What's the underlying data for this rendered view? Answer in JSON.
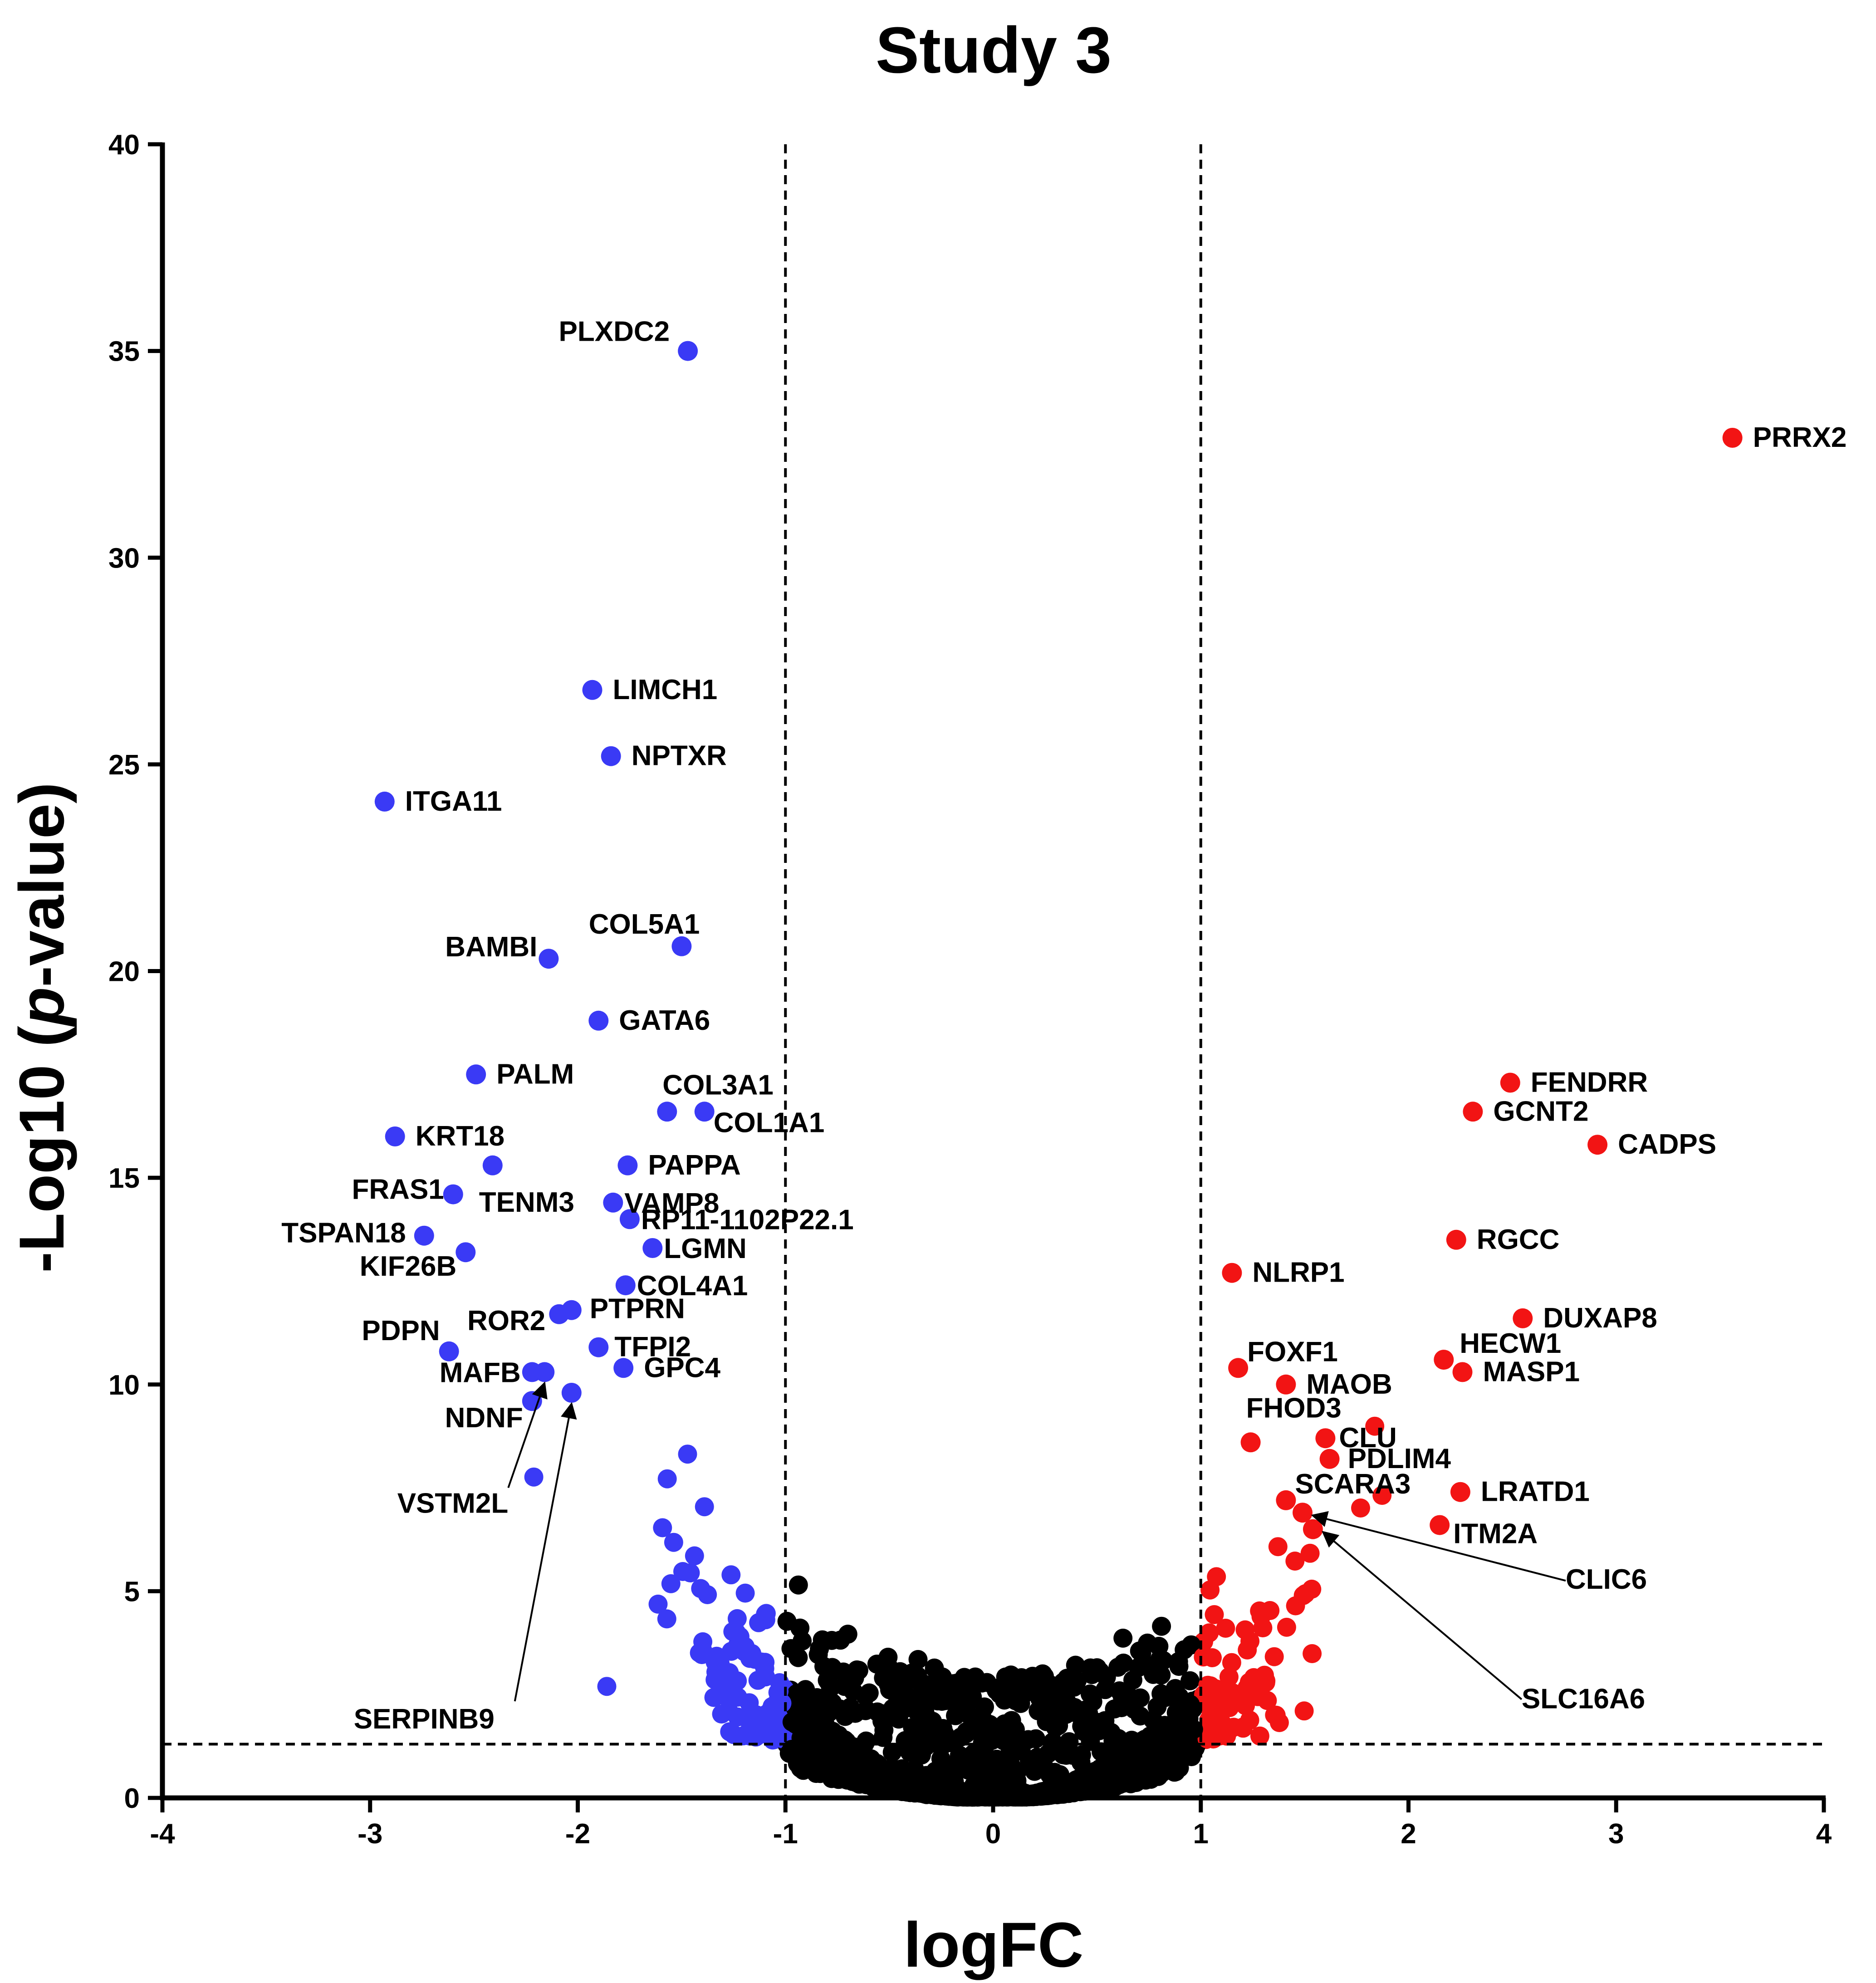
{
  "chart_data": {
    "type": "scatter",
    "title": "Study 3",
    "xlabel": "logFC",
    "ylabel_prefix": "-Log10 (",
    "ylabel_italic": "p",
    "ylabel_suffix": "-value)",
    "xlim": [
      -4,
      4
    ],
    "ylim": [
      0,
      40
    ],
    "xticks": [
      -4,
      -3,
      -2,
      -1,
      0,
      1,
      2,
      3,
      4
    ],
    "yticks": [
      0,
      5,
      10,
      15,
      20,
      25,
      30,
      35,
      40
    ],
    "thresholds": {
      "logfc": [
        -1,
        1
      ],
      "neglog10p": 1.3
    },
    "colors": {
      "down": "#3a3af5",
      "up": "#f21414",
      "ns": "#000000"
    },
    "labeled_points": [
      {
        "gene": "PLXDC2",
        "x": -1.47,
        "y": 35.0,
        "group": "down"
      },
      {
        "gene": "LIMCH1",
        "x": -1.93,
        "y": 26.8,
        "group": "down"
      },
      {
        "gene": "NPTXR",
        "x": -1.84,
        "y": 25.2,
        "group": "down"
      },
      {
        "gene": "ITGA11",
        "x": -2.93,
        "y": 24.1,
        "group": "down"
      },
      {
        "gene": "COL5A1",
        "x": -1.5,
        "y": 20.6,
        "group": "down"
      },
      {
        "gene": "BAMBI",
        "x": -2.14,
        "y": 20.3,
        "group": "down"
      },
      {
        "gene": "GATA6",
        "x": -1.9,
        "y": 18.8,
        "group": "down"
      },
      {
        "gene": "PALM",
        "x": -2.49,
        "y": 17.5,
        "group": "down"
      },
      {
        "gene": "COL3A1",
        "x": -1.57,
        "y": 16.6,
        "group": "down"
      },
      {
        "gene": "COL1A1",
        "x": -1.39,
        "y": 16.6,
        "group": "down"
      },
      {
        "gene": "KRT18",
        "x": -2.88,
        "y": 16.0,
        "group": "down"
      },
      {
        "gene": "PAPPA",
        "x": -1.76,
        "y": 15.3,
        "group": "down"
      },
      {
        "gene": "FRAS1",
        "x": -2.6,
        "y": 14.6,
        "group": "down"
      },
      {
        "gene": "TENM3",
        "x": -2.41,
        "y": 15.3,
        "group": "down"
      },
      {
        "gene": "VAMP8",
        "x": -1.83,
        "y": 14.4,
        "group": "down"
      },
      {
        "gene": "RP11-1102P22.1",
        "x": -1.75,
        "y": 14.0,
        "group": "down"
      },
      {
        "gene": "TSPAN18",
        "x": -2.74,
        "y": 13.6,
        "group": "down"
      },
      {
        "gene": "LGMN",
        "x": -1.64,
        "y": 13.3,
        "group": "down"
      },
      {
        "gene": "KIF26B",
        "x": -2.54,
        "y": 13.2,
        "group": "down"
      },
      {
        "gene": "COL4A1",
        "x": -1.77,
        "y": 12.4,
        "group": "down"
      },
      {
        "gene": "PTPRN",
        "x": -2.03,
        "y": 11.8,
        "group": "down"
      },
      {
        "gene": "ROR2",
        "x": -2.09,
        "y": 11.7,
        "group": "down"
      },
      {
        "gene": "PDPN",
        "x": -2.62,
        "y": 10.8,
        "group": "down"
      },
      {
        "gene": "TFPI2",
        "x": -1.9,
        "y": 10.9,
        "group": "down"
      },
      {
        "gene": "GPC4",
        "x": -1.78,
        "y": 10.4,
        "group": "down"
      },
      {
        "gene": "MAFB",
        "x": -2.22,
        "y": 10.3,
        "group": "down"
      },
      {
        "gene": "NDNF",
        "x": -2.22,
        "y": 9.6,
        "group": "down"
      },
      {
        "gene": "VSTM2L",
        "x": -2.16,
        "y": 10.3,
        "group": "down"
      },
      {
        "gene": "SERPINB9",
        "x": -2.03,
        "y": 9.8,
        "group": "down"
      },
      {
        "gene": "PRRX2",
        "x": 3.56,
        "y": 32.9,
        "group": "up"
      },
      {
        "gene": "FENDRR",
        "x": 2.49,
        "y": 17.3,
        "group": "up"
      },
      {
        "gene": "GCNT2",
        "x": 2.31,
        "y": 16.6,
        "group": "up"
      },
      {
        "gene": "CADPS",
        "x": 2.91,
        "y": 15.8,
        "group": "up"
      },
      {
        "gene": "RGCC",
        "x": 2.23,
        "y": 13.5,
        "group": "up"
      },
      {
        "gene": "NLRP1",
        "x": 1.15,
        "y": 12.7,
        "group": "up"
      },
      {
        "gene": "DUXAP8",
        "x": 2.55,
        "y": 11.6,
        "group": "up"
      },
      {
        "gene": "FOXF1",
        "x": 1.18,
        "y": 10.4,
        "group": "up"
      },
      {
        "gene": "HECW1",
        "x": 2.17,
        "y": 10.6,
        "group": "up"
      },
      {
        "gene": "MASP1",
        "x": 2.26,
        "y": 10.3,
        "group": "up"
      },
      {
        "gene": "MAOB",
        "x": 1.41,
        "y": 10.0,
        "group": "up"
      },
      {
        "gene": "FHOD3",
        "x": 1.24,
        "y": 8.6,
        "group": "up"
      },
      {
        "gene": "CLU",
        "x": 1.6,
        "y": 8.7,
        "group": "up"
      },
      {
        "gene": "PDLIM4",
        "x": 1.62,
        "y": 8.2,
        "group": "up"
      },
      {
        "gene": "SCARA3",
        "x": 1.41,
        "y": 7.2,
        "group": "up"
      },
      {
        "gene": "LRATD1",
        "x": 2.25,
        "y": 7.4,
        "group": "up"
      },
      {
        "gene": "ITM2A",
        "x": 2.15,
        "y": 6.6,
        "group": "up"
      },
      {
        "gene": "CLIC6",
        "x": 1.49,
        "y": 6.9,
        "group": "up"
      },
      {
        "gene": "SLC16A6",
        "x": 1.54,
        "y": 6.5,
        "group": "up"
      }
    ],
    "annotations": {
      "arrows": [
        "VSTM2L",
        "SERPINB9",
        "CLIC6",
        "SLC16A6"
      ]
    },
    "background_points_note": "dense cloud of several thousand genes; generated procedurally"
  }
}
